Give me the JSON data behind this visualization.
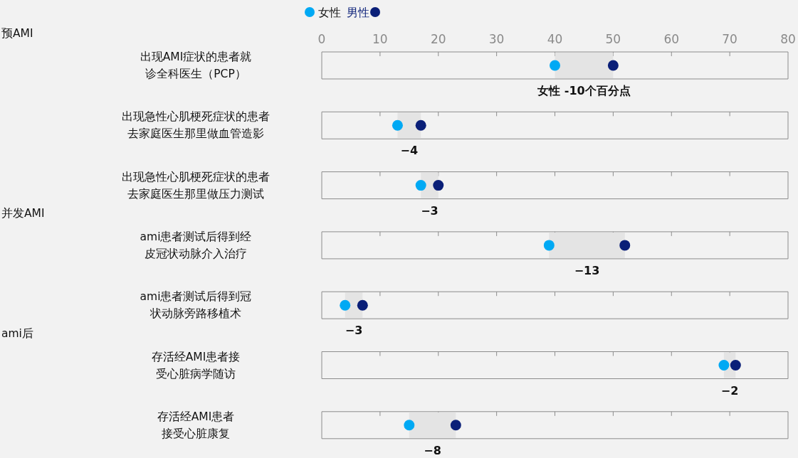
{
  "chart_data": {
    "type": "scatter",
    "orientation": "horizontal",
    "categories": [
      "出现AMI症状的患者就诊全科医生（PCP）",
      "出现急性心肌梗死症状的患者去家庭医生那里做血管造影",
      "出现急性心肌梗死症状的患者去家庭医生那里做压力测试",
      "ami患者测试后得到经皮冠状动脉介入治疗",
      "ami患者测试后得到冠状动脉旁路移植术",
      "存活经AMI患者接受心脏病学随访",
      "存活经AMI患者接受心脏康复"
    ],
    "series": [
      {
        "name": "女性",
        "color": "#00a9f4",
        "values": [
          40,
          13,
          17,
          39,
          4,
          69,
          15
        ]
      },
      {
        "name": "男性",
        "color": "#0a1f78",
        "values": [
          50,
          17,
          20,
          52,
          7,
          71,
          23
        ]
      }
    ],
    "xlim": [
      0,
      80
    ],
    "xticks": [
      0,
      10,
      20,
      30,
      40,
      50,
      60,
      70,
      80
    ],
    "legend": "top",
    "marker": "circle",
    "grid": false,
    "annotations": [
      "女性 -10个百分点",
      "−4",
      "−3",
      "−13",
      "−3",
      "−2",
      "−8",
      "预AMI",
      "并发AMI",
      "ami后"
    ]
  }
}
